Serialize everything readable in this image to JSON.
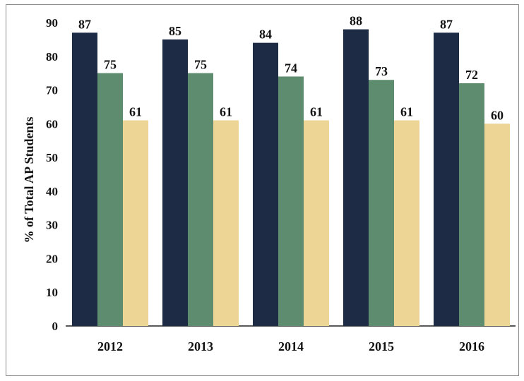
{
  "chart_data": {
    "type": "bar",
    "categories": [
      "2012",
      "2013",
      "2014",
      "2015",
      "2016"
    ],
    "series": [
      {
        "values": [
          87,
          85,
          84,
          88,
          87
        ],
        "color": "#1d2b45"
      },
      {
        "values": [
          75,
          75,
          74,
          73,
          72
        ],
        "color": "#5e8c6e"
      },
      {
        "values": [
          61,
          61,
          61,
          61,
          60
        ],
        "color": "#ecd595"
      }
    ],
    "ylabel": "% of Total AP Students",
    "ylim": [
      0,
      90
    ],
    "yticks": [
      "0",
      "10",
      "20",
      "30",
      "40",
      "50",
      "60",
      "70",
      "80",
      "90"
    ],
    "grid": false,
    "legend": "none"
  }
}
